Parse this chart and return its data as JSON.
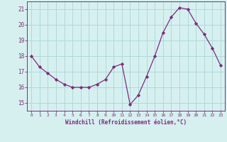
{
  "x": [
    0,
    1,
    2,
    3,
    4,
    5,
    6,
    7,
    8,
    9,
    10,
    11,
    12,
    13,
    14,
    15,
    16,
    17,
    18,
    19,
    20,
    21,
    22,
    23
  ],
  "y": [
    18.0,
    17.3,
    16.9,
    16.5,
    16.2,
    16.0,
    16.0,
    16.0,
    16.2,
    16.5,
    17.3,
    17.5,
    14.9,
    15.5,
    16.7,
    18.0,
    19.5,
    20.5,
    21.1,
    21.0,
    20.1,
    19.4,
    18.5,
    17.4
  ],
  "line_color": "#7b2d7b",
  "marker": "D",
  "marker_size": 2.2,
  "bg_color": "#d6f0f0",
  "grid_color": "#b0d8d8",
  "xlabel": "Windchill (Refroidissement éolien,°C)",
  "xlabel_color": "#7b2d7b",
  "tick_color": "#7b2d7b",
  "ylim": [
    14.5,
    21.5
  ],
  "yticks": [
    15,
    16,
    17,
    18,
    19,
    20,
    21
  ],
  "xlim": [
    -0.5,
    23.5
  ],
  "xticks": [
    0,
    1,
    2,
    3,
    4,
    5,
    6,
    7,
    8,
    9,
    10,
    11,
    12,
    13,
    14,
    15,
    16,
    17,
    18,
    19,
    20,
    21,
    22,
    23
  ]
}
